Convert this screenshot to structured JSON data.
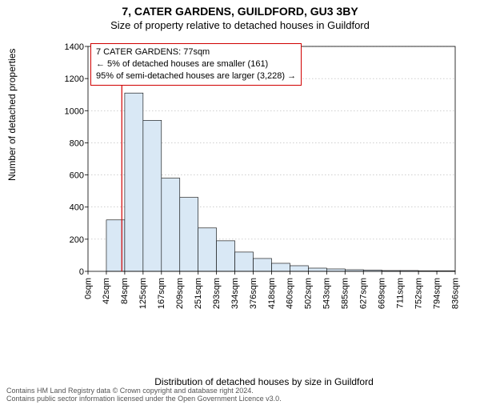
{
  "titles": {
    "main": "7, CATER GARDENS, GUILDFORD, GU3 3BY",
    "sub": "Size of property relative to detached houses in Guildford"
  },
  "annotation": {
    "line1": "7 CATER GARDENS: 77sqm",
    "line2": "← 5% of detached houses are smaller (161)",
    "line3": "95% of semi-detached houses are larger (3,228) →"
  },
  "axis": {
    "ylabel": "Number of detached properties",
    "xlabel": "Distribution of detached houses by size in Guildford"
  },
  "footer": {
    "line1": "Contains HM Land Registry data © Crown copyright and database right 2024.",
    "line2": "Contains public sector information licensed under the Open Government Licence v3.0."
  },
  "chart": {
    "type": "histogram",
    "ylim": [
      0,
      1400
    ],
    "yticks": [
      0,
      200,
      400,
      600,
      800,
      1000,
      1200,
      1400
    ],
    "xtick_labels": [
      "0sqm",
      "42sqm",
      "84sqm",
      "125sqm",
      "167sqm",
      "209sqm",
      "251sqm",
      "293sqm",
      "334sqm",
      "376sqm",
      "418sqm",
      "460sqm",
      "502sqm",
      "543sqm",
      "585sqm",
      "627sqm",
      "669sqm",
      "711sqm",
      "752sqm",
      "794sqm",
      "836sqm"
    ],
    "bar_values": [
      0,
      320,
      1110,
      940,
      580,
      460,
      270,
      190,
      120,
      80,
      50,
      35,
      20,
      15,
      10,
      8,
      5,
      5,
      3,
      3
    ],
    "bar_fill": "#d9e8f5",
    "bar_stroke": "#000000",
    "grid_color": "#888888",
    "marker_color": "#d00000",
    "marker_x_value": 77,
    "marker_x_max": 836,
    "plot_background": "#ffffff",
    "title_fontsize": 14,
    "subtitle_fontsize": 13,
    "axis_label_fontsize": 12,
    "tick_fontsize": 11
  }
}
